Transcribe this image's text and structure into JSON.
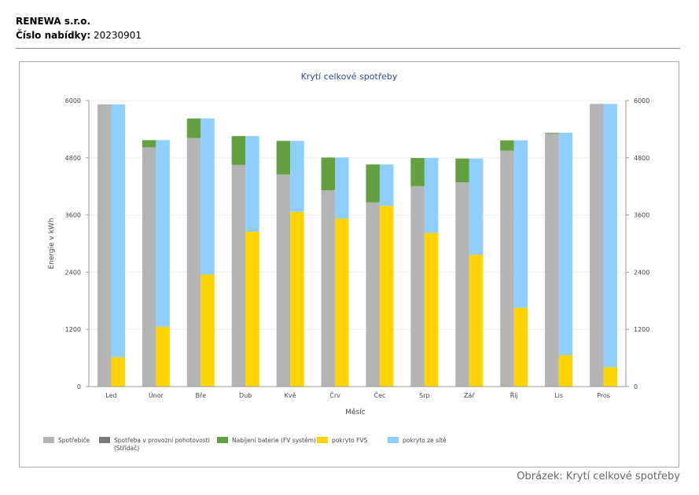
{
  "header": {
    "company": "RENEWA s.r.o.",
    "offer_label": "Číslo nabídky:",
    "offer_number": "20230901"
  },
  "caption": "Obrázek: Krytí celkové spotřeby",
  "chart_data": {
    "type": "bar",
    "title": "Krytí celkové spotřeby",
    "xlabel": "Měsíc",
    "ylabel": "Energie v kWh",
    "ylim": [
      0,
      6000
    ],
    "yticks": [
      0,
      1200,
      2400,
      3600,
      4800,
      6000
    ],
    "grid": true,
    "legend_position": "bottom",
    "categories": [
      "Led",
      "Únor",
      "Bře",
      "Dub",
      "Kvě",
      "Črv",
      "Čec",
      "Srp",
      "Zář",
      "Říj",
      "Lis",
      "Pros"
    ],
    "stacks": [
      {
        "stack": "consumption",
        "series": [
          {
            "name": "Spotřebiče",
            "color": "#b4b4b4",
            "values": [
              5920,
              5020,
              5215,
              4650,
              4450,
              4120,
              3865,
              4205,
              4285,
              4950,
              5310,
              5930
            ]
          },
          {
            "name": "Spotřeba v provozní pohotovosti (Střídač)",
            "color": "#7a7a7a",
            "values": [
              0,
              0,
              0,
              0,
              0,
              0,
              0,
              0,
              0,
              0,
              0,
              0
            ]
          },
          {
            "name": "Nabíjení baterie (FV systém)",
            "color": "#62a040",
            "values": [
              0,
              150,
              410,
              605,
              705,
              685,
              795,
              590,
              500,
              215,
              15,
              0
            ]
          }
        ]
      },
      {
        "stack": "coverage",
        "series": [
          {
            "name": "pokryto FVS",
            "color": "#ffd400",
            "values": [
              615,
              1255,
              2350,
              3250,
              3665,
              3525,
              3790,
              3225,
              2765,
              1655,
              660,
              405
            ]
          },
          {
            "name": "pokryto ze sítě",
            "color": "#8ecfff",
            "values": [
              5305,
              3915,
              3275,
              2005,
              1490,
              1280,
              870,
              1570,
              2020,
              3510,
              4665,
              5525
            ]
          }
        ]
      }
    ]
  }
}
